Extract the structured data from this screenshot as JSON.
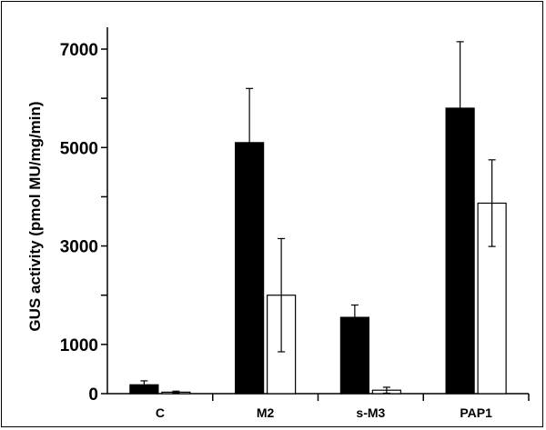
{
  "chart_data": {
    "type": "bar",
    "title": "",
    "xlabel": "",
    "ylabel": "GUS activity (pmol MU/mg/min)",
    "ylim": [
      0,
      7500
    ],
    "y_tick_labels": [
      {
        "value": 0,
        "label": "0"
      },
      {
        "value": 1000,
        "label": "1000"
      },
      {
        "value": 3000,
        "label": "3000"
      },
      {
        "value": 5000,
        "label": "5000"
      },
      {
        "value": 7000,
        "label": "7000"
      }
    ],
    "y_minor_ticks": [
      2000,
      4000,
      6000
    ],
    "categories": [
      "C",
      "M2",
      "s-M3",
      "PAP1"
    ],
    "series": [
      {
        "color": "#000000",
        "values": [
          180,
          5100,
          1550,
          5800
        ],
        "errors": [
          80,
          1100,
          250,
          1350
        ]
      },
      {
        "color": "#ffffff",
        "values": [
          30,
          2000,
          70,
          3870
        ],
        "errors": [
          20,
          1150,
          60,
          880
        ]
      }
    ],
    "grid": false,
    "legend": "none"
  }
}
